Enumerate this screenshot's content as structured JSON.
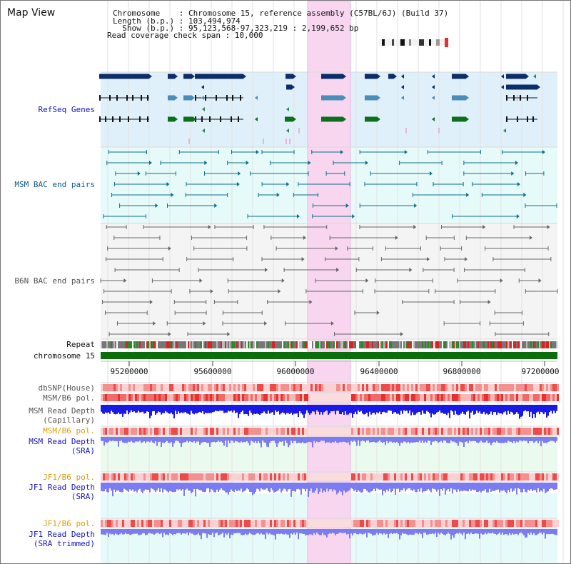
{
  "title": "Map View",
  "info": {
    "chromosome_line": "Chromosome    : Chromosome 15, reference assembly (C57BL/6J) (Build 37)",
    "length_line": "Length (b.p.) : 103,494,974",
    "show_line": "  Show (b.p.) : 95,123,568-97,323,219 : 2,199,652 bp",
    "coverage_line": "Read coverage check span : 10,000"
  },
  "tracks": {
    "refseq": "RefSeq Genes",
    "msm_bac": "MSM BAC end pairs",
    "b6n_bac": "B6N BAC end pairs",
    "repeat": "Repeat",
    "chromosome": "chromosome 15",
    "dbsnp": "dbSNP(House)",
    "msm_b6_pol_1": "MSM/B6 pol.",
    "msm_depth_cap_1": "MSM Read Depth",
    "msm_depth_cap_2": "(Capillary)",
    "msm_b6_pol_2": "MSM/B6 pol.",
    "msm_depth_sra_1": "MSM Read Depth",
    "msm_depth_sra_2": "(SRA)",
    "jf1_b6_pol_1": "JF1/B6 pol.",
    "jf1_depth_sra_1": "JF1 Read Depth",
    "jf1_depth_sra_2": "(SRA)",
    "jf1_b6_pol_2": "JF1/B6 pol.",
    "jf1_depth_trim_1": "JF1 Read Depth",
    "jf1_depth_trim_2": "(SRA trimmed)"
  },
  "axis": {
    "ticks": [
      "95200000",
      "95600000",
      "96000000",
      "96400000",
      "96800000",
      "97200000"
    ]
  },
  "colors": {
    "refseq_bg": "#dff0fa",
    "bac_bg": "#e6fafa",
    "highlight": "#f8d6f0",
    "navy_gene": "#0b2d6b",
    "steel_gene": "#4a8db8",
    "green_gene": "#0d6e1c",
    "chromosome_bar": "#0a6e0a",
    "msm_bac": "#0d6e88",
    "b6n_bac": "#666666",
    "depth_capillary": "#1a1ae6",
    "depth_sra": "#7c7cf2",
    "polymorphism": "#ee3030"
  },
  "icons": [
    "chromosome-ideogram-icon",
    "gene-arrow-icon",
    "bac-end-icon"
  ]
}
